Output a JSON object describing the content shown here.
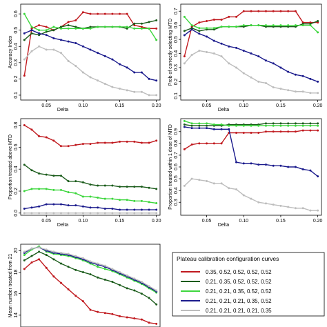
{
  "chart_data": [
    {
      "type": "line",
      "xlabel": "Delta",
      "ylabel": "Accuracy Index",
      "xlim": [
        0.015,
        0.205
      ],
      "ylim": [
        0.07,
        0.66
      ],
      "xticks": [
        0.05,
        0.1,
        0.15,
        0.2
      ],
      "xtick_labels": [
        "0.05",
        "0.10",
        "0.15",
        "0.20"
      ],
      "yticks": [
        0.1,
        0.2,
        0.3,
        0.4,
        0.5,
        0.6
      ],
      "ytick_labels": [
        "0.1",
        "0.2",
        "0.3",
        "0.4",
        "0.5",
        "0.6"
      ],
      "x": [
        0.02,
        0.03,
        0.04,
        0.05,
        0.06,
        0.07,
        0.08,
        0.09,
        0.1,
        0.11,
        0.12,
        0.13,
        0.14,
        0.15,
        0.16,
        0.17,
        0.18,
        0.19,
        0.2
      ],
      "series": [
        {
          "color": "#c0191e",
          "values": [
            0.22,
            0.51,
            0.53,
            0.52,
            0.5,
            0.52,
            0.55,
            0.56,
            0.61,
            0.6,
            0.6,
            0.6,
            0.6,
            0.6,
            0.6,
            0.53,
            0.52,
            0.51,
            0.51
          ]
        },
        {
          "color": "#1a5b1a",
          "values": [
            0.44,
            0.48,
            0.47,
            0.49,
            0.5,
            0.52,
            0.53,
            0.52,
            0.51,
            0.52,
            0.52,
            0.52,
            0.52,
            0.52,
            0.51,
            0.54,
            0.54,
            0.55,
            0.56
          ]
        },
        {
          "color": "#3cd63c",
          "values": [
            0.6,
            0.52,
            0.5,
            0.5,
            0.52,
            0.51,
            0.51,
            0.51,
            0.51,
            0.51,
            0.52,
            0.52,
            0.52,
            0.52,
            0.52,
            0.51,
            0.51,
            0.51,
            0.44
          ]
        },
        {
          "color": "#1a1a8c",
          "values": [
            0.48,
            0.5,
            0.48,
            0.47,
            0.45,
            0.44,
            0.43,
            0.42,
            0.4,
            0.38,
            0.36,
            0.34,
            0.32,
            0.29,
            0.27,
            0.24,
            0.24,
            0.2,
            0.19
          ]
        },
        {
          "color": "#bdbdbd",
          "values": [
            0.32,
            0.37,
            0.4,
            0.38,
            0.38,
            0.36,
            0.31,
            0.28,
            0.24,
            0.21,
            0.19,
            0.17,
            0.15,
            0.14,
            0.13,
            0.12,
            0.12,
            0.1,
            0.1
          ]
        }
      ]
    },
    {
      "type": "line",
      "xlabel": "Delta",
      "ylabel": "Prob of correctly selecting MTD",
      "xlim": [
        0.015,
        0.205
      ],
      "ylim": [
        0.07,
        0.75
      ],
      "xticks": [
        0.05,
        0.1,
        0.15,
        0.2
      ],
      "xtick_labels": [
        "0.05",
        "0.10",
        "0.15",
        "0.20"
      ],
      "yticks": [
        0.1,
        0.2,
        0.3,
        0.4,
        0.5,
        0.6,
        0.7
      ],
      "ytick_labels": [
        "0.1",
        "0.2",
        "0.3",
        "0.4",
        "0.5",
        "0.6",
        "0.7"
      ],
      "x": [
        0.02,
        0.03,
        0.04,
        0.05,
        0.06,
        0.07,
        0.08,
        0.09,
        0.1,
        0.11,
        0.12,
        0.13,
        0.14,
        0.15,
        0.16,
        0.17,
        0.18,
        0.19,
        0.2
      ],
      "series": [
        {
          "color": "#c0191e",
          "values": [
            0.38,
            0.59,
            0.62,
            0.63,
            0.64,
            0.64,
            0.66,
            0.66,
            0.7,
            0.7,
            0.7,
            0.7,
            0.7,
            0.7,
            0.7,
            0.7,
            0.62,
            0.62,
            0.62
          ]
        },
        {
          "color": "#1a5b1a",
          "values": [
            0.56,
            0.58,
            0.56,
            0.57,
            0.57,
            0.59,
            0.59,
            0.59,
            0.59,
            0.6,
            0.6,
            0.59,
            0.59,
            0.59,
            0.59,
            0.59,
            0.61,
            0.61,
            0.63
          ]
        },
        {
          "color": "#3cd63c",
          "values": [
            0.66,
            0.6,
            0.58,
            0.58,
            0.58,
            0.59,
            0.59,
            0.59,
            0.6,
            0.6,
            0.6,
            0.6,
            0.6,
            0.6,
            0.6,
            0.6,
            0.6,
            0.6,
            0.55
          ]
        },
        {
          "color": "#1a1a8c",
          "values": [
            0.53,
            0.57,
            0.54,
            0.52,
            0.49,
            0.47,
            0.45,
            0.44,
            0.42,
            0.4,
            0.38,
            0.35,
            0.33,
            0.3,
            0.27,
            0.25,
            0.24,
            0.22,
            0.2
          ]
        },
        {
          "color": "#bdbdbd",
          "values": [
            0.33,
            0.39,
            0.42,
            0.41,
            0.4,
            0.38,
            0.33,
            0.3,
            0.26,
            0.23,
            0.2,
            0.19,
            0.16,
            0.15,
            0.14,
            0.13,
            0.13,
            0.12,
            0.12
          ]
        }
      ]
    },
    {
      "type": "line",
      "xlabel": "Delta",
      "ylabel": "Proportion treated above MTD",
      "xlim": [
        0.015,
        0.205
      ],
      "ylim": [
        -0.02,
        0.86
      ],
      "xticks": [
        0.05,
        0.1,
        0.15,
        0.2
      ],
      "xtick_labels": [
        "0.05",
        "0.10",
        "0.15",
        "0.20"
      ],
      "yticks": [
        0.0,
        0.2,
        0.4,
        0.6,
        0.8
      ],
      "ytick_labels": [
        "0.0",
        "0.2",
        "0.4",
        "0.6",
        "0.8"
      ],
      "x": [
        0.02,
        0.03,
        0.04,
        0.05,
        0.06,
        0.07,
        0.08,
        0.09,
        0.1,
        0.11,
        0.12,
        0.13,
        0.14,
        0.15,
        0.16,
        0.17,
        0.18,
        0.19,
        0.2
      ],
      "series": [
        {
          "color": "#c0191e",
          "values": [
            0.8,
            0.76,
            0.7,
            0.69,
            0.66,
            0.61,
            0.61,
            0.62,
            0.63,
            0.63,
            0.64,
            0.64,
            0.64,
            0.65,
            0.65,
            0.65,
            0.64,
            0.64,
            0.66
          ]
        },
        {
          "color": "#1a5b1a",
          "values": [
            0.44,
            0.39,
            0.36,
            0.35,
            0.34,
            0.34,
            0.29,
            0.29,
            0.28,
            0.26,
            0.25,
            0.25,
            0.25,
            0.24,
            0.24,
            0.24,
            0.24,
            0.23,
            0.22
          ]
        },
        {
          "color": "#3cd63c",
          "values": [
            0.2,
            0.22,
            0.22,
            0.22,
            0.21,
            0.21,
            0.19,
            0.18,
            0.15,
            0.15,
            0.14,
            0.13,
            0.13,
            0.12,
            0.12,
            0.11,
            0.11,
            0.1,
            0.09
          ]
        },
        {
          "color": "#1a1a8c",
          "values": [
            0.04,
            0.05,
            0.06,
            0.08,
            0.08,
            0.08,
            0.07,
            0.07,
            0.06,
            0.05,
            0.05,
            0.04,
            0.04,
            0.03,
            0.03,
            0.03,
            0.03,
            0.03,
            0.03
          ]
        },
        {
          "color": "#bdbdbd",
          "values": [
            0.0,
            0.0,
            0.0,
            0.0,
            0.0,
            0.0,
            0.0,
            0.0,
            0.0,
            0.0,
            0.0,
            0.0,
            0.0,
            0.0,
            0.0,
            0.0,
            0.0,
            0.0,
            0.0
          ]
        }
      ]
    },
    {
      "type": "line",
      "xlabel": "Delta",
      "ylabel": "Proportion treated within 1 dose of MTD",
      "xlim": [
        0.015,
        0.205
      ],
      "ylim": [
        0.19,
        1.01
      ],
      "xticks": [
        0.05,
        0.1,
        0.15,
        0.2
      ],
      "xtick_labels": [
        "0.05",
        "0.10",
        "0.15",
        "0.20"
      ],
      "yticks": [
        0.3,
        0.4,
        0.5,
        0.6,
        0.7,
        0.8,
        0.9
      ],
      "ytick_labels": [
        "0.3",
        "0.4",
        "0.5",
        "0.6",
        "0.7",
        "0.8",
        "0.9"
      ],
      "x": [
        0.02,
        0.03,
        0.04,
        0.05,
        0.06,
        0.07,
        0.08,
        0.09,
        0.1,
        0.11,
        0.12,
        0.13,
        0.14,
        0.15,
        0.16,
        0.17,
        0.18,
        0.19,
        0.2
      ],
      "series": [
        {
          "color": "#c0191e",
          "values": [
            0.75,
            0.79,
            0.8,
            0.8,
            0.8,
            0.8,
            0.89,
            0.89,
            0.89,
            0.89,
            0.89,
            0.9,
            0.9,
            0.9,
            0.9,
            0.9,
            0.91,
            0.91,
            0.91
          ]
        },
        {
          "color": "#1a5b1a",
          "values": [
            0.96,
            0.95,
            0.95,
            0.95,
            0.95,
            0.95,
            0.96,
            0.96,
            0.96,
            0.96,
            0.96,
            0.97,
            0.97,
            0.97,
            0.97,
            0.97,
            0.97,
            0.97,
            0.97
          ]
        },
        {
          "color": "#3cd63c",
          "values": [
            0.99,
            0.97,
            0.97,
            0.97,
            0.96,
            0.96,
            0.95,
            0.95,
            0.95,
            0.95,
            0.95,
            0.95,
            0.95,
            0.95,
            0.95,
            0.95,
            0.95,
            0.95,
            0.95
          ]
        },
        {
          "color": "#1a1a8c",
          "values": [
            0.94,
            0.93,
            0.93,
            0.93,
            0.92,
            0.92,
            0.92,
            0.64,
            0.63,
            0.63,
            0.62,
            0.62,
            0.61,
            0.61,
            0.6,
            0.6,
            0.58,
            0.57,
            0.52
          ]
        },
        {
          "color": "#bdbdbd",
          "values": [
            0.44,
            0.5,
            0.49,
            0.48,
            0.46,
            0.46,
            0.42,
            0.41,
            0.36,
            0.33,
            0.3,
            0.29,
            0.28,
            0.27,
            0.26,
            0.25,
            0.25,
            0.23,
            0.23
          ]
        }
      ]
    },
    {
      "type": "line",
      "xlabel": "",
      "ylabel": "Mean number treated from 21",
      "xlim": [
        0.015,
        0.205
      ],
      "ylim": [
        12.9,
        20.6
      ],
      "xticks": [],
      "xtick_labels": [],
      "yticks": [
        14,
        16,
        18,
        20
      ],
      "ytick_labels": [
        "14",
        "16",
        "18",
        "20"
      ],
      "x": [
        0.02,
        0.03,
        0.04,
        0.05,
        0.06,
        0.07,
        0.08,
        0.09,
        0.1,
        0.11,
        0.12,
        0.13,
        0.14,
        0.15,
        0.16,
        0.17,
        0.18,
        0.19,
        0.2
      ],
      "series": [
        {
          "color": "#c0191e",
          "values": [
            18.3,
            18.9,
            19.2,
            18.4,
            17.6,
            17.0,
            16.4,
            15.8,
            15.3,
            14.5,
            14.3,
            14.2,
            14.1,
            13.9,
            13.8,
            13.7,
            13.6,
            13.3,
            13.2
          ]
        },
        {
          "color": "#1a5b1a",
          "values": [
            19.1,
            19.5,
            19.9,
            19.6,
            19.2,
            18.8,
            18.5,
            18.2,
            18.0,
            17.8,
            17.5,
            17.3,
            17.1,
            16.8,
            16.5,
            16.3,
            16.0,
            15.6,
            15.0
          ]
        },
        {
          "color": "#3cd63c",
          "values": [
            19.6,
            20.1,
            20.4,
            19.9,
            19.7,
            19.6,
            19.5,
            19.3,
            19.1,
            18.8,
            18.5,
            18.3,
            18.1,
            17.8,
            17.5,
            17.2,
            16.9,
            16.5,
            16.1
          ]
        },
        {
          "color": "#1a1a8c",
          "values": [
            19.8,
            20.2,
            20.3,
            20.0,
            19.8,
            19.7,
            19.6,
            19.4,
            19.2,
            18.9,
            18.7,
            18.5,
            18.2,
            17.9,
            17.6,
            17.3,
            17.0,
            16.6,
            16.2
          ]
        },
        {
          "color": "#bdbdbd",
          "values": [
            19.9,
            20.2,
            20.3,
            20.1,
            19.9,
            19.8,
            19.7,
            19.5,
            19.3,
            19.0,
            18.8,
            18.6,
            18.3,
            18.0,
            17.7,
            17.4,
            17.1,
            16.7,
            16.3
          ]
        }
      ]
    }
  ],
  "legend": {
    "title": "Plateau calibration configuration curves",
    "entries": [
      {
        "label": "0.35, 0.52, 0.52, 0.52, 0.52",
        "color": "#c0191e"
      },
      {
        "label": "0.21, 0.35, 0.52, 0.52, 0.52",
        "color": "#1a5b1a"
      },
      {
        "label": "0.21, 0.21, 0.35, 0.52, 0.52",
        "color": "#3cd63c"
      },
      {
        "label": "0.21, 0.21, 0.21, 0.35, 0.52",
        "color": "#1a1a8c"
      },
      {
        "label": "0.21, 0.21, 0.21, 0.21, 0.35",
        "color": "#bdbdbd"
      }
    ]
  }
}
